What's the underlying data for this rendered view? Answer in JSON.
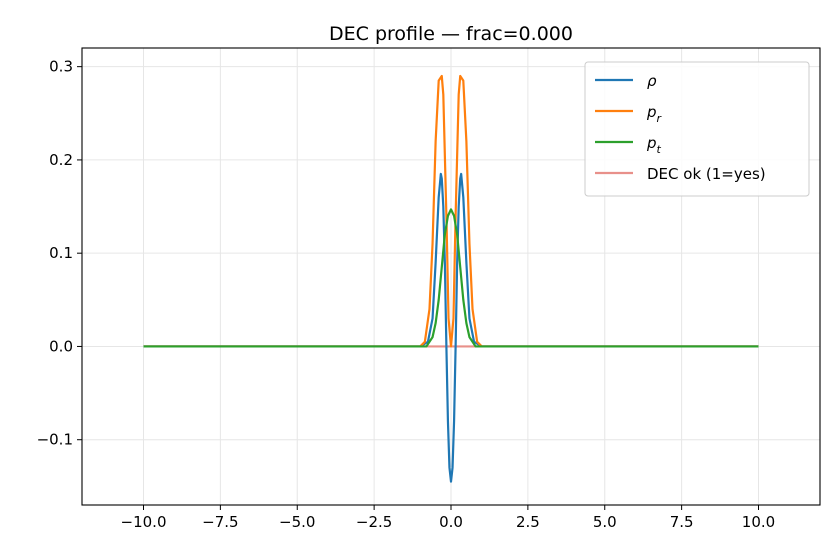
{
  "chart_data": {
    "type": "line",
    "title": "DEC profile — frac=0.000",
    "xlabel": "",
    "ylabel": "",
    "xlim": [
      -12,
      12
    ],
    "ylim": [
      -0.17,
      0.32
    ],
    "grid": true,
    "legend_position": "top-right",
    "xticks": [
      -10,
      -7.5,
      -5,
      -2.5,
      0,
      2.5,
      5,
      7.5,
      10
    ],
    "xtick_labels": [
      "−10.0",
      "−7.5",
      "−5.0",
      "−2.5",
      "0.0",
      "2.5",
      "5.0",
      "7.5",
      "10.0"
    ],
    "yticks": [
      -0.1,
      0.0,
      0.1,
      0.2,
      0.3
    ],
    "ytick_labels": [
      "−0.1",
      "0.0",
      "0.1",
      "0.2",
      "0.3"
    ],
    "series": [
      {
        "name": "ρ",
        "legend_main": "ρ",
        "legend_sub": "",
        "color": "#1f77b4",
        "x": [
          -10,
          -1.0,
          -0.75,
          -0.6,
          -0.5,
          -0.4,
          -0.33,
          -0.3,
          -0.25,
          -0.2,
          -0.15,
          -0.1,
          -0.05,
          0.0,
          0.05,
          0.1,
          0.15,
          0.2,
          0.25,
          0.3,
          0.33,
          0.4,
          0.5,
          0.6,
          0.75,
          1.0,
          10
        ],
        "y": [
          0,
          0,
          0.005,
          0.03,
          0.09,
          0.16,
          0.185,
          0.18,
          0.15,
          0.09,
          0.0,
          -0.08,
          -0.13,
          -0.145,
          -0.13,
          -0.08,
          0.0,
          0.09,
          0.15,
          0.18,
          0.185,
          0.16,
          0.09,
          0.03,
          0.005,
          0,
          0
        ]
      },
      {
        "name": "p_r",
        "legend_main": "p",
        "legend_sub": "r",
        "color": "#ff7f0e",
        "x": [
          -10,
          -1.0,
          -0.85,
          -0.7,
          -0.6,
          -0.5,
          -0.4,
          -0.3,
          -0.25,
          -0.15,
          -0.08,
          0.0,
          0.08,
          0.15,
          0.25,
          0.3,
          0.4,
          0.5,
          0.6,
          0.7,
          0.85,
          1.0,
          10
        ],
        "y": [
          0,
          0,
          0.005,
          0.04,
          0.11,
          0.22,
          0.285,
          0.29,
          0.27,
          0.14,
          0.03,
          0.0,
          0.03,
          0.14,
          0.27,
          0.29,
          0.285,
          0.22,
          0.11,
          0.04,
          0.005,
          0,
          0
        ]
      },
      {
        "name": "p_t",
        "legend_main": "p",
        "legend_sub": "t",
        "color": "#2ca02c",
        "x": [
          -10,
          -0.8,
          -0.6,
          -0.5,
          -0.4,
          -0.3,
          -0.2,
          -0.1,
          0.0,
          0.1,
          0.2,
          0.3,
          0.4,
          0.5,
          0.6,
          0.8,
          10
        ],
        "y": [
          0,
          0,
          0.01,
          0.025,
          0.05,
          0.085,
          0.12,
          0.14,
          0.147,
          0.14,
          0.12,
          0.085,
          0.05,
          0.025,
          0.01,
          0,
          0
        ]
      },
      {
        "name": "DEC ok (1=yes)",
        "legend_main": "DEC ok (1=yes)",
        "legend_sub": "",
        "color": "#e8908a",
        "x": [
          -10,
          10
        ],
        "y": [
          0,
          0
        ]
      }
    ]
  }
}
